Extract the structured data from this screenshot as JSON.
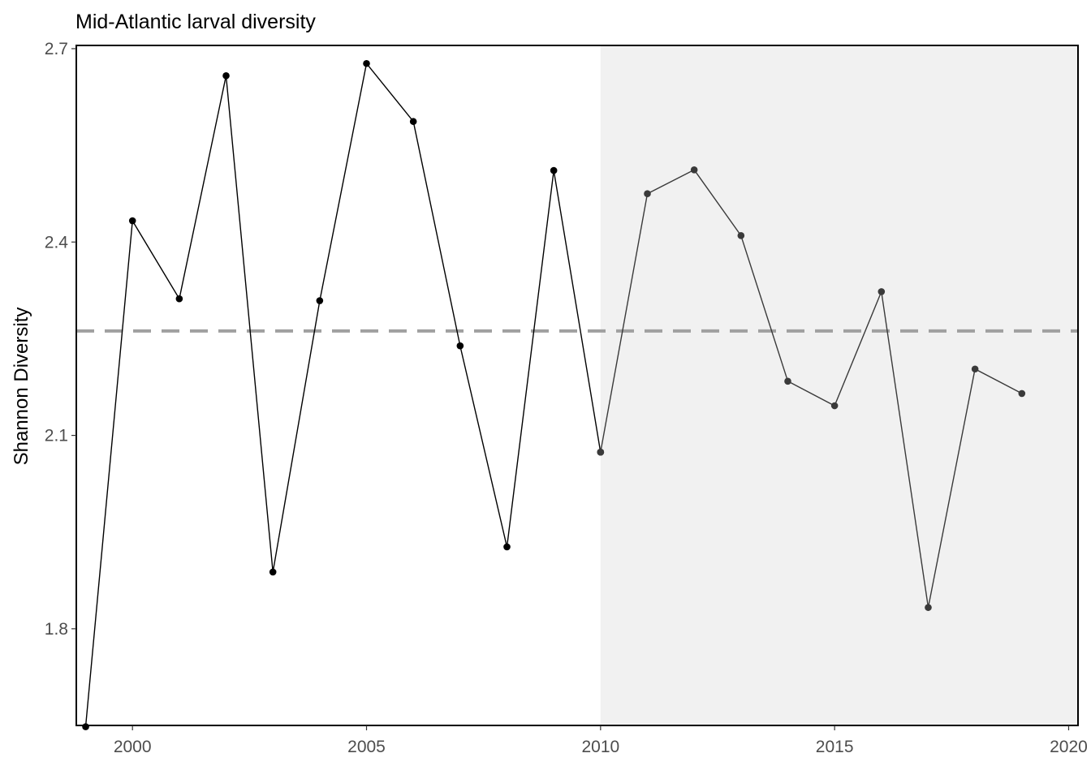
{
  "chart_data": {
    "type": "line",
    "title": "Mid-Atlantic larval diversity",
    "xlabel": "",
    "ylabel": "Shannon Diversity",
    "xlim": [
      1998.8,
      2020.2
    ],
    "ylim": [
      1.65,
      2.705
    ],
    "xticks": [
      2000,
      2005,
      2010,
      2015,
      2020
    ],
    "yticks": [
      1.8,
      2.1,
      2.4,
      2.7
    ],
    "grid": false,
    "mean_line": 2.262,
    "shaded_region": {
      "from": 2010,
      "to": 2020.2
    },
    "series": [
      {
        "x": [
          1999,
          2000,
          2001,
          2002,
          2003,
          2004,
          2005,
          2006,
          2007,
          2008,
          2009,
          2010
        ],
        "y": [
          1.648,
          2.433,
          2.312,
          2.658,
          1.888,
          2.309,
          2.677,
          2.587,
          2.239,
          1.927,
          2.511,
          2.074
        ],
        "color": "#000000"
      },
      {
        "x": [
          2010,
          2011,
          2012,
          2013,
          2014,
          2015,
          2016,
          2017,
          2018,
          2019
        ],
        "y": [
          2.074,
          2.475,
          2.512,
          2.41,
          2.184,
          2.146,
          2.323,
          1.833,
          2.203,
          2.165
        ],
        "color": "#3a3a3a"
      }
    ],
    "colors": {
      "shade": "#f1f1f1",
      "mean_line": "#a0a0a0",
      "frame": "#000000",
      "tick_text": "#4d4d4d"
    }
  }
}
